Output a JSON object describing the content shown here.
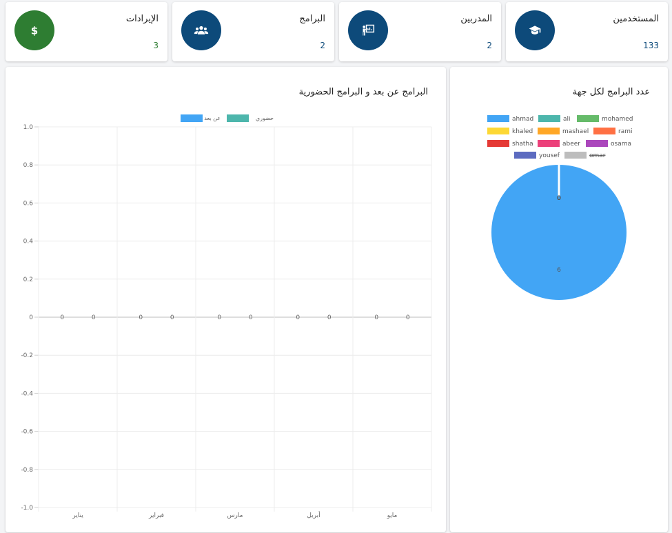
{
  "stats": [
    {
      "title": "المستخدمين",
      "value": "133",
      "icon": "graduation-cap-icon",
      "icon_bg": "#0d4a7a",
      "value_color": "#0d4a7a"
    },
    {
      "title": "المدربين",
      "value": "2",
      "icon": "presentation-icon",
      "icon_bg": "#0d4a7a",
      "value_color": "#0d4a7a"
    },
    {
      "title": "البرامج",
      "value": "2",
      "icon": "users-icon",
      "icon_bg": "#0d4a7a",
      "value_color": "#0d4a7a"
    },
    {
      "title": "الإيرادات",
      "value": "3",
      "icon": "dollar-icon",
      "icon_bg": "#2e7d32",
      "value_color": "#2e7d32"
    }
  ],
  "bar_panel": {
    "title": "البرامج عن بعد و البرامج الحضورية"
  },
  "pie_panel": {
    "title": "عدد البرامج لكل جهة"
  },
  "chart_data": [
    {
      "type": "bar",
      "title": "البرامج عن بعد و البرامج الحضورية",
      "categories": [
        "يناير",
        "فبراير",
        "مارس",
        "أبريل",
        "مايو"
      ],
      "series": [
        {
          "name": "عن بعد",
          "color": "#42a5f5",
          "values": [
            0,
            0,
            0,
            0,
            0
          ]
        },
        {
          "name": "حضوري",
          "color": "#4db6ac",
          "values": [
            0,
            0,
            0,
            0,
            0
          ]
        }
      ],
      "ylim": [
        -1.0,
        1.0
      ],
      "yticks": [
        "1.0",
        "0.8",
        "0.6",
        "0.4",
        "0.2",
        "0",
        "-0.2",
        "-0.4",
        "-0.6",
        "-0.8",
        "-1.0"
      ],
      "grid": true,
      "legend": "top"
    },
    {
      "type": "pie",
      "title": "عدد البرامج لكل جهة",
      "legend": "top",
      "slices": [
        {
          "label": "ahmad",
          "value": 6,
          "color": "#42a5f5",
          "hidden": false
        },
        {
          "label": "ali",
          "value": 0,
          "color": "#4db6ac",
          "hidden": false
        },
        {
          "label": "mohamed",
          "value": 0,
          "color": "#66bb6a",
          "hidden": false
        },
        {
          "label": "khaled",
          "value": 0,
          "color": "#fdd835",
          "hidden": false
        },
        {
          "label": "mashael",
          "value": 0,
          "color": "#ffa726",
          "hidden": false
        },
        {
          "label": "rami",
          "value": 0,
          "color": "#ff7043",
          "hidden": false
        },
        {
          "label": "shatha",
          "value": 0,
          "color": "#e53935",
          "hidden": false
        },
        {
          "label": "abeer",
          "value": 0,
          "color": "#ec407a",
          "hidden": false
        },
        {
          "label": "osama",
          "value": 0,
          "color": "#ab47bc",
          "hidden": false
        },
        {
          "label": "yousef",
          "value": 0,
          "color": "#5c6bc0",
          "hidden": false
        },
        {
          "label": "omar",
          "value": 0,
          "color": "#bdbdbd",
          "hidden": true
        }
      ]
    }
  ]
}
